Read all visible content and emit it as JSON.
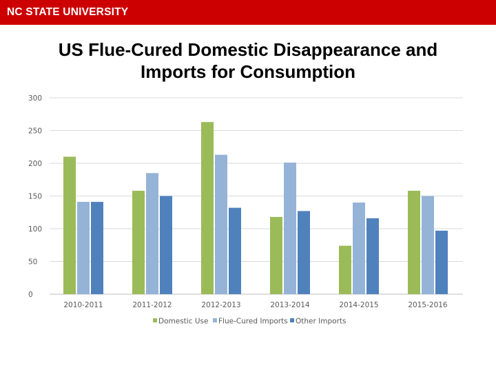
{
  "header": {
    "brand": "NC STATE UNIVERSITY",
    "brand_color": "#cc0000"
  },
  "chart_data": {
    "type": "bar",
    "title": "US Flue-Cured Domestic Disappearance and Imports for Consumption",
    "xlabel": "",
    "ylabel": "",
    "categories": [
      "2010-2011",
      "2011-2012",
      "2012-2013",
      "2013-2014",
      "2014-2015",
      "2015-2016"
    ],
    "series": [
      {
        "name": "Domestic Use",
        "color": "#9bbb59",
        "values": [
          210,
          158,
          263,
          118,
          74,
          158
        ]
      },
      {
        "name": "Flue-Cured Imports",
        "color": "#95b3d7",
        "values": [
          141,
          185,
          213,
          201,
          140,
          150
        ]
      },
      {
        "name": "Other Imports",
        "color": "#4f81bd",
        "values": [
          141,
          150,
          132,
          127,
          116,
          97
        ]
      }
    ],
    "yticks": [
      "0",
      "50",
      "100",
      "150",
      "200",
      "250",
      "300"
    ],
    "ylim": [
      0,
      300
    ],
    "grid": true,
    "legend": "bottom"
  }
}
